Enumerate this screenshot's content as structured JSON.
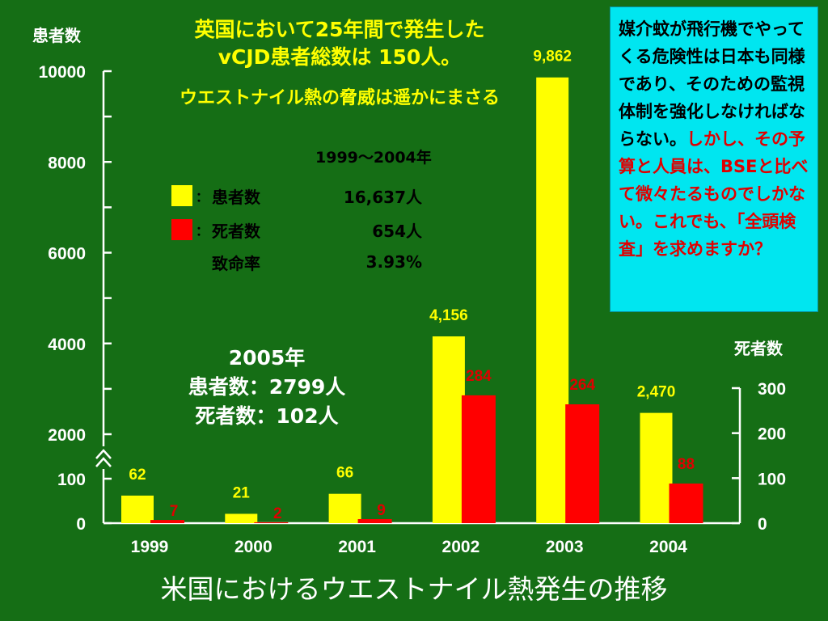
{
  "title": {
    "line1": "英国において25年間で発生した",
    "line2": "vCJD患者総数は 150人。",
    "sub": "ウエストナイル熱の脅威は遥かにまさる"
  },
  "note": {
    "black": "媒介蚊が飛行機でやってくる危険性は日本も同様であり、そのための監視体制を強化しなければならない。",
    "red": "しかし、その予算と人員は、BSEと比べて微々たるものでしかない。これでも、「全頭検査」を求めますか？"
  },
  "summary": {
    "period": "1999～2004年",
    "rows": [
      {
        "label": "患者数",
        "value": "16,637人",
        "color": "#ffff00"
      },
      {
        "label": "死者数",
        "value": "654人",
        "color": "#ff0000"
      },
      {
        "label": "致命率",
        "value": "3.93%"
      }
    ],
    "colon": "："
  },
  "year2005": {
    "heading": "2005年",
    "patients": "患者数：2799人",
    "deaths": "死者数：102人"
  },
  "footer_title": "米国におけるウエストナイル熱発生の推移",
  "colors": {
    "background": "#156e15",
    "patients": "#ffff00",
    "deaths": "#ff0000",
    "note_bg": "#00e6f0",
    "deaths_label": "#e00000"
  },
  "chart_data": {
    "type": "bar",
    "categories": [
      "1999",
      "2000",
      "2001",
      "2002",
      "2003",
      "2004"
    ],
    "series": [
      {
        "name": "患者数",
        "axis": "left",
        "values": [
          62,
          21,
          66,
          4156,
          9862,
          2470
        ],
        "labels": [
          "62",
          "21",
          "66",
          "4,156",
          "9,862",
          "2,470"
        ]
      },
      {
        "name": "死者数",
        "axis": "right",
        "values": [
          7,
          2,
          9,
          284,
          264,
          88
        ],
        "labels": [
          "7",
          "2",
          "9",
          "284",
          "264",
          "88"
        ]
      }
    ],
    "y_left": {
      "label": "患者数",
      "broken": true,
      "lower_range": [
        0,
        100
      ],
      "upper_range": [
        2000,
        10000
      ],
      "ticks": [
        "0",
        "100",
        "2000",
        "4000",
        "6000",
        "8000",
        "10000"
      ]
    },
    "y_right": {
      "label": "死者数",
      "range": [
        0,
        300
      ],
      "ticks": [
        "0",
        "100",
        "200",
        "300"
      ]
    },
    "grid": false,
    "legend": "center"
  }
}
